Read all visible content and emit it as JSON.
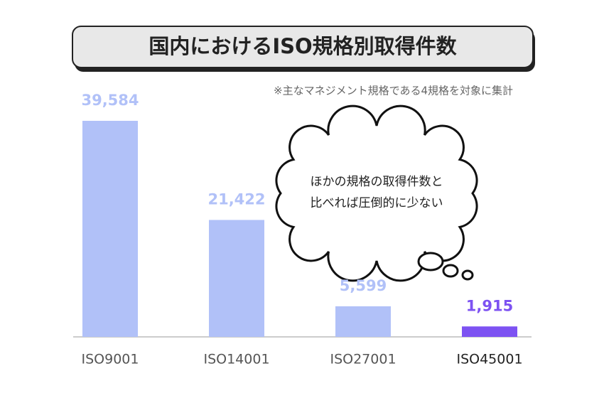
{
  "chart_data": {
    "type": "bar",
    "title": "国内におけるISO規格別取得件数",
    "note": "※主なマネジメント規格である4規格を対象に集計",
    "categories": [
      "ISO9001",
      "ISO14001",
      "ISO27001",
      "ISO45001"
    ],
    "values": [
      39584,
      21422,
      5599,
      1915
    ],
    "value_labels": [
      "39,584",
      "21,422",
      "5,599",
      "1,915"
    ],
    "colors": [
      "#b1c1f8",
      "#b1c1f8",
      "#b1c1f8",
      "#7d52f2"
    ],
    "annotation": [
      "ほかの規格の取得件数と",
      "比べれば圧倒的に少ない"
    ]
  }
}
